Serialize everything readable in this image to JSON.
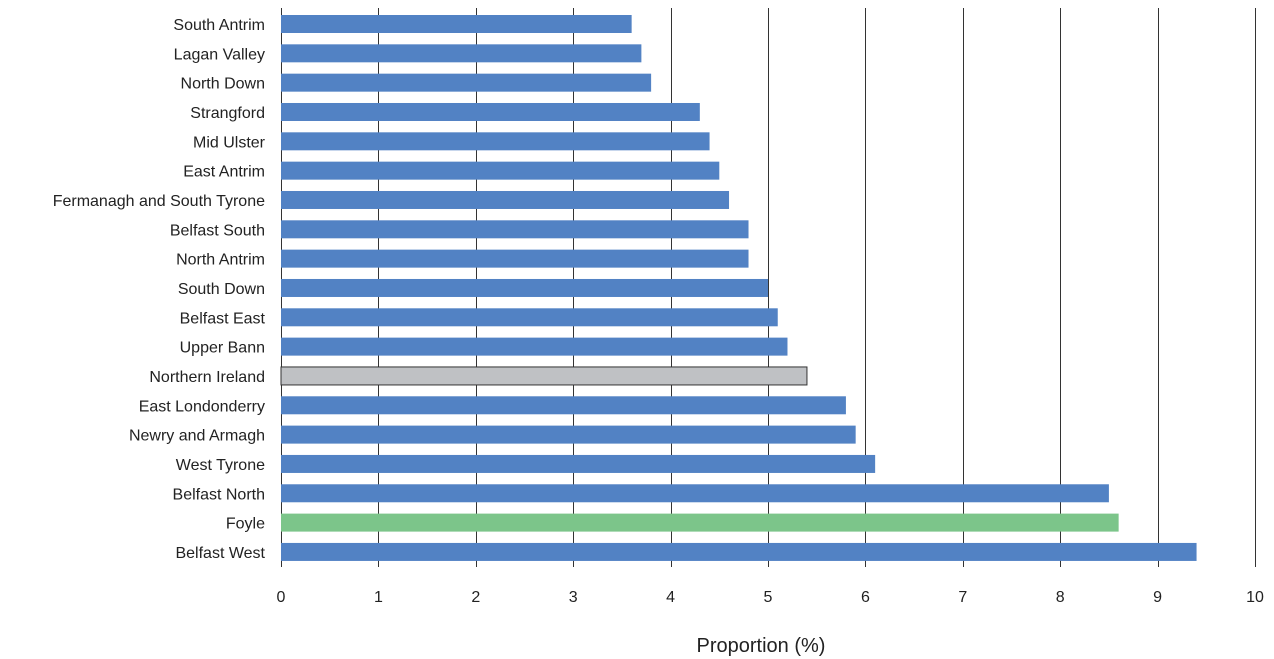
{
  "chart_data": {
    "type": "bar",
    "orientation": "horizontal",
    "title": "",
    "xlabel": "Proportion (%)",
    "ylabel": "",
    "xlim": [
      0,
      10
    ],
    "xticks": [
      0,
      1,
      2,
      3,
      4,
      5,
      6,
      7,
      8,
      9,
      10
    ],
    "grid": "vertical",
    "categories": [
      "South Antrim",
      "Lagan Valley",
      "North Down",
      "Strangford",
      "Mid Ulster",
      "East Antrim",
      "Fermanagh and South Tyrone",
      "Belfast South",
      "North Antrim",
      "South Down",
      "Belfast East",
      "Upper Bann",
      "Northern Ireland",
      "East Londonderry",
      "Newry and Armagh",
      "West Tyrone",
      "Belfast North",
      "Foyle",
      "Belfast West"
    ],
    "values": [
      3.6,
      3.7,
      3.8,
      4.3,
      4.4,
      4.5,
      4.6,
      4.8,
      4.8,
      5.0,
      5.1,
      5.2,
      5.4,
      5.8,
      5.9,
      6.1,
      8.5,
      8.6,
      9.4
    ],
    "colors": {
      "default": "#5282C4",
      "Northern Ireland": "#BFC1C4",
      "Foyle": "#7CC58A",
      "gridline": "#333333"
    }
  }
}
